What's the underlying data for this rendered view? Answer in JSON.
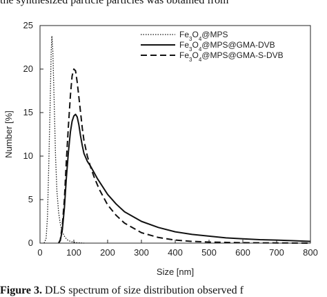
{
  "caption_top": "the synthesized particle particles was obtained from",
  "caption_bottom_bold": "Figure 3.",
  "caption_bottom_rest": " DLS spectrum of size distribution observed f",
  "chart_data": {
    "type": "line",
    "xlabel": "Size [nm]",
    "ylabel": "Number [%]",
    "xlim": [
      0,
      800
    ],
    "ylim": [
      0,
      25
    ],
    "xticks": [
      "0",
      "100",
      "200",
      "300",
      "400",
      "500",
      "600",
      "700",
      "800"
    ],
    "yticks": [
      "0",
      "5",
      "10",
      "15",
      "20",
      "25"
    ],
    "grid": false,
    "legend_position": "top-right",
    "series": [
      {
        "name": "Fe3O4@MPS",
        "legend_base": "Fe",
        "legend_sub1": "3",
        "legend_mid": "O",
        "legend_sub2": "4",
        "legend_rest": "@MPS",
        "style": "dotted",
        "x": [
          12,
          18,
          22,
          26,
          30,
          33,
          35,
          38,
          42,
          46,
          50,
          55,
          60,
          66,
          72,
          80,
          90,
          100,
          110,
          130
        ],
        "y": [
          0,
          0.5,
          3,
          9,
          16,
          22,
          23.8,
          22,
          16,
          10,
          6,
          3.5,
          2.2,
          1.3,
          0.8,
          0.4,
          0.2,
          0.1,
          0.05,
          0
        ]
      },
      {
        "name": "Fe3O4@MPS@GMA-DVB",
        "legend_base": "Fe",
        "legend_sub1": "3",
        "legend_mid": "O",
        "legend_sub2": "4",
        "legend_rest": "@MPS@GMA-DVB",
        "style": "solid",
        "x": [
          55,
          60,
          66,
          72,
          78,
          84,
          90,
          95,
          100,
          105,
          110,
          115,
          120,
          125,
          130,
          140,
          150,
          160,
          170,
          180,
          200,
          225,
          250,
          300,
          350,
          400,
          450,
          500,
          550,
          600,
          650,
          700,
          750,
          800
        ],
        "y": [
          0,
          0.3,
          1.5,
          4,
          7.5,
          10.5,
          12.8,
          14,
          14.6,
          14.8,
          14.5,
          13.6,
          12.3,
          11.2,
          10.3,
          9.4,
          8.8,
          8.1,
          7.4,
          6.8,
          5.6,
          4.5,
          3.6,
          2.5,
          1.8,
          1.3,
          1.0,
          0.8,
          0.6,
          0.5,
          0.4,
          0.35,
          0.28,
          0.2
        ]
      },
      {
        "name": "Fe3O4@MPS@GMA-S-DVB",
        "legend_base": "Fe",
        "legend_sub1": "3",
        "legend_mid": "O",
        "legend_sub2": "4",
        "legend_rest": "@MPS@GMA-S-DVB",
        "style": "dashed",
        "x": [
          55,
          60,
          66,
          72,
          78,
          84,
          90,
          95,
          100,
          105,
          110,
          115,
          120,
          125,
          130,
          140,
          150,
          160,
          175,
          200,
          225,
          250,
          300,
          350,
          400,
          450,
          500,
          600,
          700,
          800
        ],
        "y": [
          0,
          0.4,
          2,
          5,
          9.5,
          13.5,
          17,
          19.2,
          20,
          19.8,
          18.5,
          16.8,
          15,
          13.2,
          11.8,
          10,
          8.7,
          7.6,
          6.2,
          4.4,
          3.2,
          2.3,
          1.2,
          0.65,
          0.35,
          0.2,
          0.12,
          0.05,
          0.02,
          0
        ]
      }
    ]
  }
}
